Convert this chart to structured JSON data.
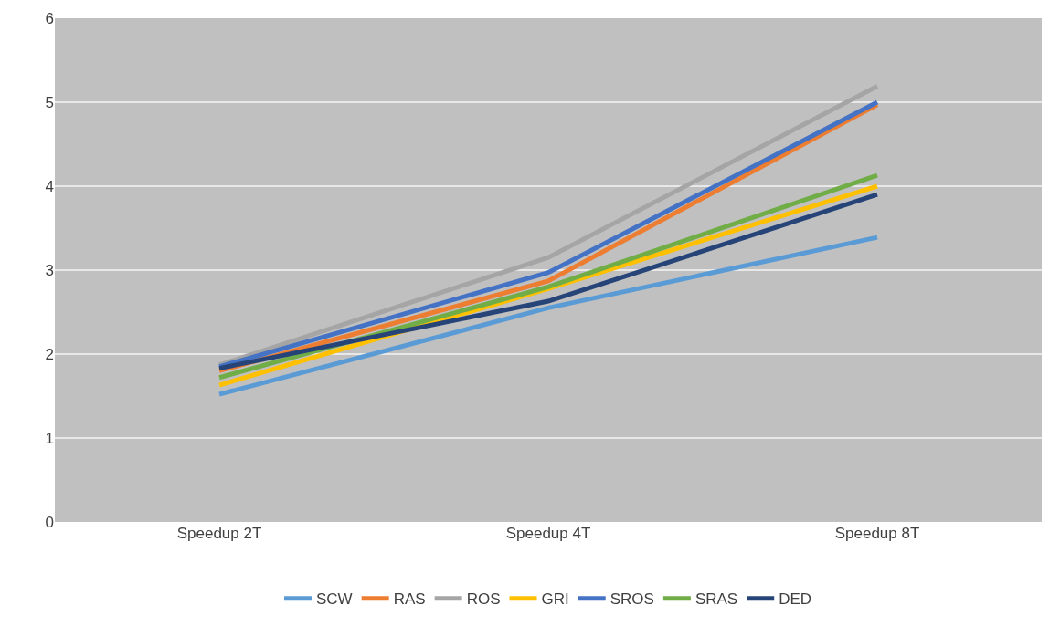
{
  "chart_data": {
    "type": "line",
    "categories": [
      "Speedup 2T",
      "Speedup 4T",
      "Speedup 8T"
    ],
    "series": [
      {
        "name": "SCW",
        "color": "#5b9bd5",
        "values": [
          1.52,
          2.55,
          3.39
        ]
      },
      {
        "name": "RAS",
        "color": "#ed7d31",
        "values": [
          1.8,
          2.87,
          4.97
        ]
      },
      {
        "name": "ROS",
        "color": "#a5a5a5",
        "values": [
          1.87,
          3.15,
          5.19
        ]
      },
      {
        "name": "GRI",
        "color": "#ffc000",
        "values": [
          1.63,
          2.78,
          4.0
        ]
      },
      {
        "name": "SROS",
        "color": "#4472c4",
        "values": [
          1.85,
          2.97,
          5.0
        ]
      },
      {
        "name": "SRAS",
        "color": "#70ad47",
        "values": [
          1.72,
          2.8,
          4.13
        ]
      },
      {
        "name": "DED",
        "color": "#264478",
        "values": [
          1.83,
          2.63,
          3.9
        ]
      }
    ],
    "ylim": [
      0,
      6
    ],
    "yticks": [
      0,
      1,
      2,
      3,
      4,
      5,
      6
    ],
    "grid": "y",
    "legend": "bottom",
    "marker": "none",
    "line_style": "solid"
  }
}
